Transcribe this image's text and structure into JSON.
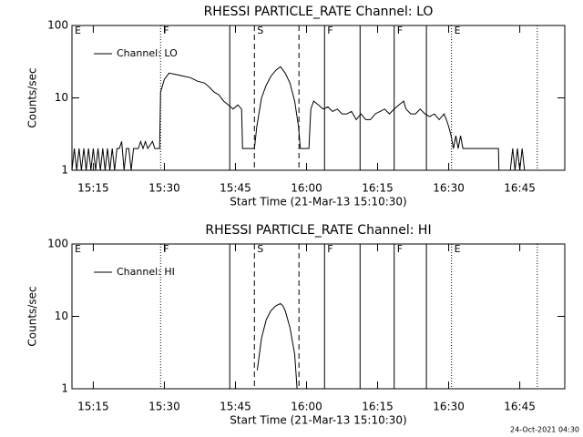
{
  "chart_data": [
    {
      "type": "line",
      "title": "RHESSI PARTICLE_RATE Channel: LO",
      "x_label": "Start Time (21-Mar-13 15:10:30)",
      "y_label": "Counts/sec",
      "log_scale": true,
      "legend": "upper left",
      "xlim": [
        0,
        104
      ],
      "ylim": [
        1,
        100
      ],
      "yticks": [
        1,
        10,
        100
      ],
      "xticks": [
        {
          "value": 4.5,
          "label": "15:15"
        },
        {
          "value": 19.5,
          "label": "15:30"
        },
        {
          "value": 34.5,
          "label": "15:45"
        },
        {
          "value": 49.5,
          "label": "16:00"
        },
        {
          "value": 64.5,
          "label": "16:15"
        },
        {
          "value": 79.5,
          "label": "16:30"
        },
        {
          "value": 94.5,
          "label": "16:45"
        }
      ],
      "markers": [
        {
          "x": 0,
          "style": "solid",
          "label": "E"
        },
        {
          "x": 18.7,
          "style": "dotted",
          "label": "F"
        },
        {
          "x": 33.3,
          "style": "solid"
        },
        {
          "x": 38.5,
          "style": "dashed",
          "label": "S"
        },
        {
          "x": 47.9,
          "style": "dashed"
        },
        {
          "x": 53.3,
          "style": "solid",
          "label": "F"
        },
        {
          "x": 60.8,
          "style": "solid"
        },
        {
          "x": 68.0,
          "style": "solid",
          "label": "F"
        },
        {
          "x": 74.8,
          "style": "solid"
        },
        {
          "x": 80.1,
          "style": "dotted",
          "label": "E"
        },
        {
          "x": 98.2,
          "style": "dotted"
        }
      ],
      "x": [
        0,
        0.5,
        1,
        1.5,
        2,
        2.5,
        3,
        3.5,
        4,
        4.5,
        5,
        5.5,
        6,
        6.5,
        7,
        7.5,
        8,
        8.5,
        9,
        9.5,
        10,
        10.5,
        11,
        11.5,
        12,
        12.5,
        13,
        14,
        14.5,
        15,
        15.5,
        16,
        17,
        17.5,
        18.5,
        18.7,
        19.5,
        20.5,
        22,
        23.5,
        25,
        26.5,
        28,
        29,
        30,
        31,
        32,
        33,
        34,
        35,
        35.8,
        36,
        38.5,
        39,
        40,
        41,
        42,
        43,
        44,
        45,
        46,
        47,
        47.8,
        48.2,
        50,
        50.4,
        51,
        52,
        53,
        54,
        55,
        56,
        57,
        58,
        59,
        60,
        61,
        62,
        63,
        64,
        65,
        66,
        67,
        68,
        69,
        70,
        70.5,
        71.5,
        72.5,
        73.5,
        74.5,
        75.5,
        76.5,
        77.5,
        78.5,
        79,
        79.5,
        80,
        80.5,
        81,
        81.5,
        82,
        82.5,
        83,
        90,
        90.1,
        92.5,
        93,
        93.5,
        94,
        94.5,
        95,
        95.5,
        96.5
      ],
      "series": [
        {
          "name": "Channel: LO",
          "color": "#000000",
          "values": [
            1,
            2,
            1,
            2,
            1,
            2,
            1,
            2,
            1,
            2,
            1,
            2,
            1,
            2,
            1,
            2,
            1,
            2,
            1,
            2,
            2,
            2.5,
            1,
            2,
            2,
            1,
            2,
            2,
            2.5,
            2,
            2.5,
            2,
            2.5,
            2,
            2,
            12,
            18,
            22,
            21,
            20,
            19,
            17,
            16,
            14,
            12,
            11,
            9,
            8,
            7,
            8,
            7,
            2,
            2,
            4,
            10,
            15,
            20,
            24,
            27,
            22,
            16,
            9,
            4,
            2,
            2,
            7,
            9,
            8,
            7,
            7.5,
            6.5,
            7,
            6,
            6,
            6.5,
            5,
            6,
            5,
            5,
            6,
            6.5,
            7,
            6,
            7,
            8,
            9,
            7,
            6,
            6,
            7,
            6,
            5.5,
            6,
            5,
            6,
            5,
            4,
            3,
            2,
            3,
            2,
            3,
            2,
            2,
            2,
            1,
            1,
            2,
            1,
            2,
            1,
            2,
            1,
            1
          ]
        }
      ]
    },
    {
      "type": "line",
      "title": "RHESSI PARTICLE_RATE Channel: HI",
      "x_label": "Start Time (21-Mar-13 15:10:30)",
      "y_label": "Counts/sec",
      "log_scale": true,
      "legend": "upper left",
      "xlim": [
        0,
        104
      ],
      "ylim": [
        1,
        100
      ],
      "yticks": [
        1,
        10,
        100
      ],
      "xticks": [
        {
          "value": 4.5,
          "label": "15:15"
        },
        {
          "value": 19.5,
          "label": "15:30"
        },
        {
          "value": 34.5,
          "label": "15:45"
        },
        {
          "value": 49.5,
          "label": "16:00"
        },
        {
          "value": 64.5,
          "label": "16:15"
        },
        {
          "value": 79.5,
          "label": "16:30"
        },
        {
          "value": 94.5,
          "label": "16:45"
        }
      ],
      "markers": [
        {
          "x": 0,
          "style": "solid",
          "label": "E"
        },
        {
          "x": 18.7,
          "style": "dotted",
          "label": "F"
        },
        {
          "x": 33.3,
          "style": "solid"
        },
        {
          "x": 38.5,
          "style": "dashed",
          "label": "S"
        },
        {
          "x": 47.9,
          "style": "dashed"
        },
        {
          "x": 53.3,
          "style": "solid",
          "label": "F"
        },
        {
          "x": 60.8,
          "style": "solid"
        },
        {
          "x": 68.0,
          "style": "solid",
          "label": "F"
        },
        {
          "x": 74.8,
          "style": "solid"
        },
        {
          "x": 80.1,
          "style": "dotted",
          "label": "E"
        },
        {
          "x": 98.2,
          "style": "dotted"
        }
      ],
      "x": [
        39.1,
        40,
        41,
        42,
        43,
        44,
        44.5,
        45,
        46,
        47,
        47.5
      ],
      "series": [
        {
          "name": "Channel: HI",
          "color": "#000000",
          "values": [
            1.8,
            5,
            9,
            12,
            14,
            15,
            14,
            12,
            7,
            3,
            1
          ]
        }
      ]
    }
  ],
  "footer": "24-Oct-2021 04:30"
}
